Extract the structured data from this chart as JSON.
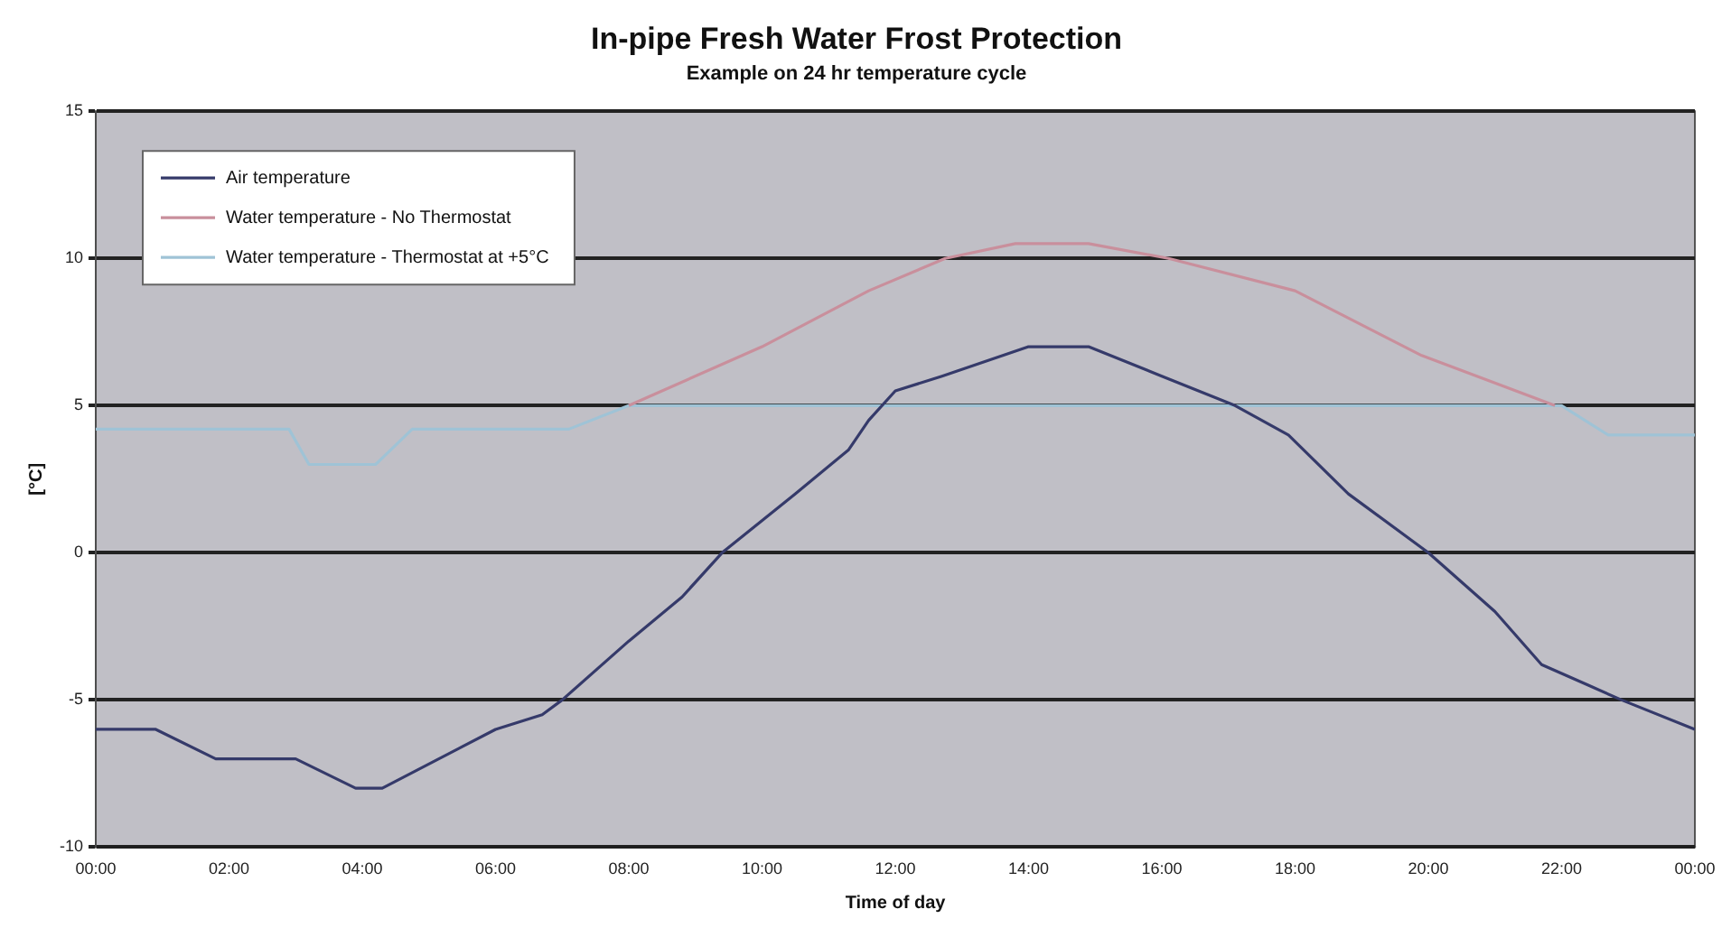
{
  "chart_data": {
    "type": "line",
    "title": "In-pipe Fresh Water Frost Protection",
    "subtitle": "Example on 24 hr temperature cycle",
    "xlabel": "Time of day",
    "ylabel": "[°C]",
    "xlim": [
      0,
      24
    ],
    "xticks": [
      {
        "value": 0,
        "label": "00:00"
      },
      {
        "value": 2,
        "label": "02:00"
      },
      {
        "value": 4,
        "label": "04:00"
      },
      {
        "value": 6,
        "label": "06:00"
      },
      {
        "value": 8,
        "label": "08:00"
      },
      {
        "value": 10,
        "label": "10:00"
      },
      {
        "value": 12,
        "label": "12:00"
      },
      {
        "value": 14,
        "label": "14:00"
      },
      {
        "value": 16,
        "label": "16:00"
      },
      {
        "value": 18,
        "label": "18:00"
      },
      {
        "value": 20,
        "label": "20:00"
      },
      {
        "value": 22,
        "label": "22:00"
      },
      {
        "value": 24,
        "label": "00:00"
      }
    ],
    "ylim": [
      -10,
      15
    ],
    "yticks": [
      -10,
      -5,
      0,
      5,
      10,
      15
    ],
    "grid": "y",
    "legend": "top left",
    "marker": "none",
    "line_style": "solid",
    "series": [
      {
        "name": "Air temperature",
        "color": "#353a6a",
        "x": [
          0,
          0.9,
          1.8,
          3,
          3.9,
          4.3,
          6,
          6.7,
          7,
          8,
          8.8,
          9.4,
          10.5,
          11.3,
          11.6,
          12,
          12.7,
          14,
          14.9,
          16,
          17.1,
          17.9,
          18.8,
          20,
          21,
          21.7,
          22.4,
          22.9,
          24
        ],
        "values": [
          -6,
          -6,
          -7,
          -7,
          -8,
          -8,
          -6,
          -5.5,
          -5,
          -3,
          -1.5,
          0,
          2,
          3.5,
          4.5,
          5.5,
          6,
          7,
          7,
          6,
          5,
          4,
          2,
          0,
          -2,
          -3.8,
          -4.5,
          -5,
          -6
        ]
      },
      {
        "name": "Water temperature - No Thermostat",
        "color": "#c98f9c",
        "x": [
          8,
          10,
          11.6,
          12.75,
          13.8,
          14.9,
          16.1,
          18,
          19.9,
          21.9
        ],
        "values": [
          5,
          7,
          8.9,
          10,
          10.5,
          10.5,
          10,
          8.9,
          6.7,
          5
        ]
      },
      {
        "name": "Water temperature - Thermostat at +5°C",
        "color": "#9fc3d6",
        "x": [
          0,
          2.9,
          3.2,
          4.2,
          4.75,
          7.1,
          8,
          22,
          22.7,
          24
        ],
        "values": [
          4.2,
          4.2,
          3,
          3,
          4.2,
          4.2,
          5,
          5,
          4,
          4
        ]
      }
    ]
  }
}
